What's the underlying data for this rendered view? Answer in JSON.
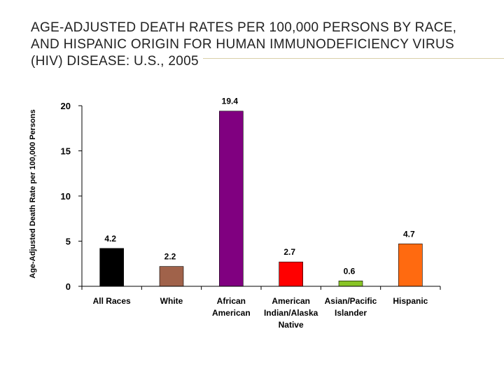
{
  "title_lines": [
    "AGE-ADJUSTED DEATH RATES PER 100,000 PERSONS BY RACE,",
    "AND HISPANIC ORIGIN FOR HUMAN IMMUNODEFICIENCY VIRUS",
    "(HIV) DISEASE: U.S., 2005"
  ],
  "chart_data": {
    "type": "bar",
    "title": "AGE-ADJUSTED DEATH RATES PER 100,000 PERSONS BY RACE, AND HISPANIC ORIGIN FOR HUMAN IMMUNODEFICIENCY VIRUS (HIV) DISEASE: U.S., 2005",
    "xlabel": "",
    "ylabel": "Age-Adjusted Death Rate per 100,000 Persons",
    "ylim": [
      0,
      20
    ],
    "yticks": [
      0,
      5,
      10,
      15,
      20
    ],
    "grid": false,
    "categories": [
      [
        "All Races"
      ],
      [
        "White"
      ],
      [
        "African",
        "American"
      ],
      [
        "American",
        "Indian/Alaska",
        "Native"
      ],
      [
        "Asian/Pacific",
        "Islander"
      ],
      [
        "Hispanic"
      ]
    ],
    "values": [
      4.2,
      2.2,
      19.4,
      2.7,
      0.6,
      4.7
    ],
    "data_labels": [
      "4.2",
      "2.2",
      "19.4",
      "2.7",
      "0.6",
      "4.7"
    ],
    "colors": [
      "#000000",
      "#a0624a",
      "#800080",
      "#ff0000",
      "#88c425",
      "#ff6a10"
    ]
  }
}
